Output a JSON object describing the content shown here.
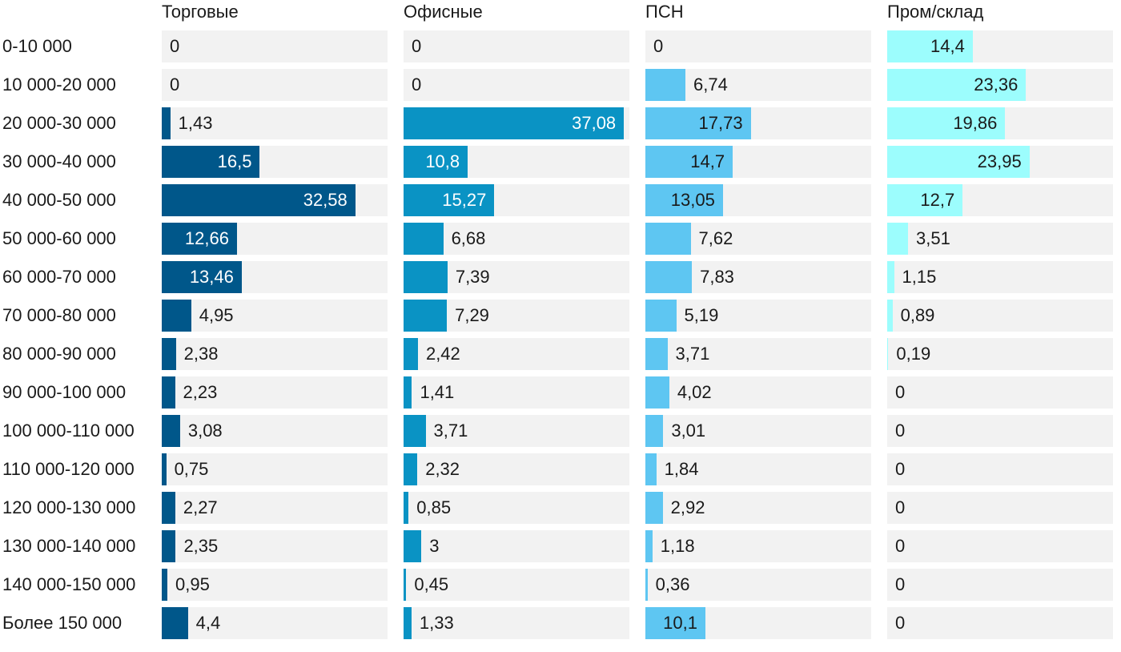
{
  "chart_data": {
    "type": "bar",
    "orientation": "horizontal",
    "layout": "small-multiples",
    "categories": [
      "0-10 000",
      "10 000-20 000",
      "20 000-30 000",
      "30 000-40 000",
      "40 000-50 000",
      "50 000-60 000",
      "60 000-70 000",
      "70 000-80 000",
      "80 000-90 000",
      "90 000-100 000",
      "100 000-110 000",
      "110 000-120 000",
      "120 000-130 000",
      "130 000-140 000",
      "140 000-150 000",
      "Более 150 000"
    ],
    "xlim": [
      0,
      38
    ],
    "series": [
      {
        "name": "Торговые",
        "color": "#00578a",
        "label_inside_color": "#ffffff",
        "values": [
          0,
          0,
          1.43,
          16.5,
          32.58,
          12.66,
          13.46,
          4.95,
          2.38,
          2.23,
          3.08,
          0.75,
          2.27,
          2.35,
          0.95,
          4.4
        ],
        "labels": [
          "0",
          "0",
          "1,43",
          "16,5",
          "32,58",
          "12,66",
          "13,46",
          "4,95",
          "2,38",
          "2,23",
          "3,08",
          "0,75",
          "2,27",
          "2,35",
          "0,95",
          "4,4"
        ]
      },
      {
        "name": "Офисные",
        "color": "#0a93c4",
        "label_inside_color": "#ffffff",
        "values": [
          0,
          0,
          37.08,
          10.8,
          15.27,
          6.68,
          7.39,
          7.29,
          2.42,
          1.41,
          3.71,
          2.32,
          0.85,
          3,
          0.45,
          1.33
        ],
        "labels": [
          "0",
          "0",
          "37,08",
          "10,8",
          "15,27",
          "6,68",
          "7,39",
          "7,29",
          "2,42",
          "1,41",
          "3,71",
          "2,32",
          "0,85",
          "3",
          "0,45",
          "1,33"
        ]
      },
      {
        "name": "ПСН",
        "color": "#5ec6f2",
        "label_inside_color": "#1a1a1a",
        "values": [
          0,
          6.74,
          17.73,
          14.7,
          13.05,
          7.62,
          7.83,
          5.19,
          3.71,
          4.02,
          3.01,
          1.84,
          2.92,
          1.18,
          0.36,
          10.1
        ],
        "labels": [
          "0",
          "6,74",
          "17,73",
          "14,7",
          "13,05",
          "7,62",
          "7,83",
          "5,19",
          "3,71",
          "4,02",
          "3,01",
          "1,84",
          "2,92",
          "1,18",
          "0,36",
          "10,1"
        ]
      },
      {
        "name": "Пром/склад",
        "color": "#9cfdfd",
        "label_inside_color": "#1a1a1a",
        "values": [
          14.4,
          23.36,
          19.86,
          23.95,
          12.7,
          3.51,
          1.15,
          0.89,
          0.19,
          0,
          0,
          0,
          0,
          0,
          0,
          0
        ],
        "labels": [
          "14,4",
          "23,36",
          "19,86",
          "23,95",
          "12,7",
          "3,51",
          "1,15",
          "0,89",
          "0,19",
          "0",
          "0",
          "0",
          "0",
          "0",
          "0",
          "0"
        ]
      }
    ],
    "track_color": "#f2f2f2",
    "text_color": "#1a1a1a"
  }
}
